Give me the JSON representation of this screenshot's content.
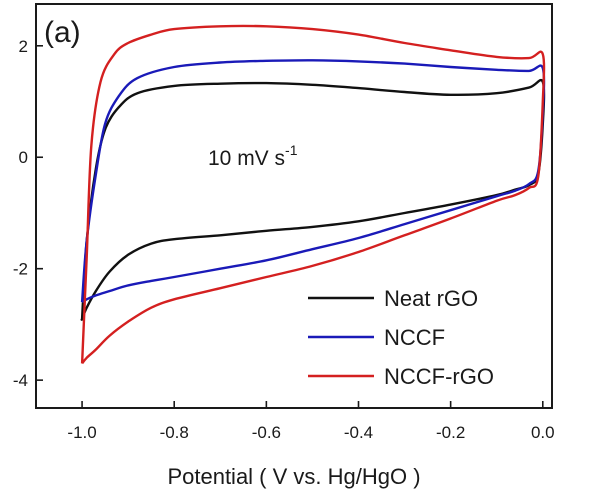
{
  "chart_data": {
    "type": "line",
    "panel_label": "(a)",
    "annotation": {
      "main": "10 mV s",
      "sup": "-1"
    },
    "xlabel": "Potential ( V vs. Hg/HgO )",
    "ylabel": "",
    "xlim": [
      -1.1,
      0.02
    ],
    "ylim": [
      -4.5,
      2.75
    ],
    "x_ticks": [
      {
        "value": -1.0,
        "label": "-1.0"
      },
      {
        "value": -0.8,
        "label": "-0.8"
      },
      {
        "value": -0.6,
        "label": "-0.6"
      },
      {
        "value": -0.4,
        "label": "-0.4"
      },
      {
        "value": -0.2,
        "label": "-0.2"
      },
      {
        "value": 0.0,
        "label": "0.0"
      }
    ],
    "y_ticks": [
      {
        "value": 2,
        "label": "2"
      },
      {
        "value": 0,
        "label": "0"
      },
      {
        "value": -2,
        "label": "-2"
      },
      {
        "value": -4,
        "label": "-4"
      }
    ],
    "legend_position": "bottom-right",
    "series": [
      {
        "name": "Neat rGO",
        "color": "#111111",
        "x": [
          -1.0,
          -0.99,
          -0.97,
          -0.95,
          -0.92,
          -0.88,
          -0.8,
          -0.7,
          -0.6,
          -0.5,
          -0.4,
          -0.3,
          -0.2,
          -0.1,
          -0.03,
          0.0,
          0.0,
          -0.01,
          -0.03,
          -0.06,
          -0.1,
          -0.2,
          -0.3,
          -0.4,
          -0.5,
          -0.6,
          -0.7,
          -0.8,
          -0.85,
          -0.9,
          -0.94,
          -0.97,
          -0.99,
          -1.0,
          -1.0
        ],
        "y": [
          -2.9,
          -1.5,
          -0.2,
          0.5,
          0.9,
          1.15,
          1.28,
          1.32,
          1.33,
          1.3,
          1.24,
          1.17,
          1.12,
          1.15,
          1.25,
          1.35,
          0.6,
          -0.3,
          -0.5,
          -0.58,
          -0.68,
          -0.85,
          -1.0,
          -1.15,
          -1.25,
          -1.32,
          -1.4,
          -1.47,
          -1.55,
          -1.75,
          -2.05,
          -2.4,
          -2.7,
          -2.9,
          -2.9
        ]
      },
      {
        "name": "NCCF",
        "color": "#1a1ab8",
        "x": [
          -1.0,
          -0.99,
          -0.97,
          -0.95,
          -0.92,
          -0.88,
          -0.8,
          -0.7,
          -0.6,
          -0.5,
          -0.4,
          -0.3,
          -0.2,
          -0.1,
          -0.03,
          0.0,
          0.0,
          -0.01,
          -0.03,
          -0.06,
          -0.1,
          -0.2,
          -0.3,
          -0.4,
          -0.5,
          -0.6,
          -0.7,
          -0.8,
          -0.85,
          -0.9,
          -0.94,
          -0.97,
          -0.99,
          -1.0
        ],
        "y": [
          -2.6,
          -1.5,
          -0.3,
          0.6,
          1.1,
          1.42,
          1.62,
          1.7,
          1.73,
          1.74,
          1.72,
          1.68,
          1.62,
          1.57,
          1.55,
          1.6,
          0.8,
          -0.25,
          -0.48,
          -0.6,
          -0.7,
          -0.95,
          -1.2,
          -1.45,
          -1.65,
          -1.85,
          -2.0,
          -2.15,
          -2.22,
          -2.3,
          -2.4,
          -2.48,
          -2.55,
          -2.6
        ]
      },
      {
        "name": "NCCF-rGO",
        "color": "#d42020",
        "x": [
          -1.0,
          -0.99,
          -0.98,
          -0.96,
          -0.93,
          -0.9,
          -0.85,
          -0.8,
          -0.7,
          -0.6,
          -0.5,
          -0.4,
          -0.3,
          -0.2,
          -0.1,
          -0.03,
          0.0,
          0.0,
          -0.01,
          -0.03,
          -0.06,
          -0.1,
          -0.2,
          -0.3,
          -0.4,
          -0.5,
          -0.6,
          -0.7,
          -0.8,
          -0.85,
          -0.9,
          -0.94,
          -0.97,
          -0.99,
          -1.0
        ],
        "y": [
          -3.7,
          -1.8,
          0.2,
          1.35,
          1.85,
          2.05,
          2.2,
          2.3,
          2.35,
          2.35,
          2.3,
          2.2,
          2.05,
          1.92,
          1.8,
          1.78,
          1.85,
          1.0,
          -0.35,
          -0.55,
          -0.68,
          -0.78,
          -1.1,
          -1.4,
          -1.7,
          -1.95,
          -2.15,
          -2.35,
          -2.55,
          -2.7,
          -2.95,
          -3.2,
          -3.45,
          -3.6,
          -3.7
        ]
      }
    ]
  }
}
